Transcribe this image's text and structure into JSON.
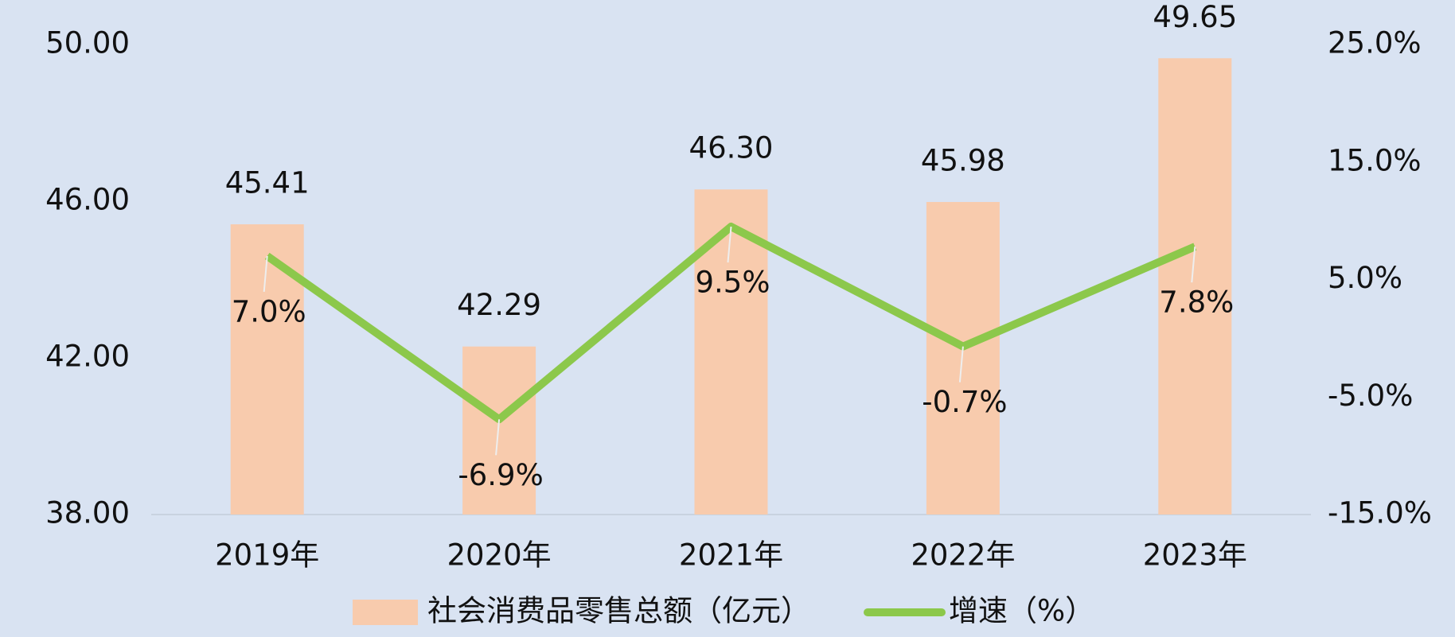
{
  "chart_data": {
    "type": "bar",
    "categories": [
      "2019年",
      "2020年",
      "2021年",
      "2022年",
      "2023年"
    ],
    "series": [
      {
        "name": "社会消费品零售总额（亿元）",
        "type": "bar",
        "color": "#f8cbad",
        "values": [
          45.41,
          42.29,
          46.3,
          45.98,
          49.65
        ],
        "value_labels": [
          "45.41",
          "42.29",
          "46.30",
          "45.98",
          "49.65"
        ]
      },
      {
        "name": "增速（%）",
        "type": "line",
        "axis": "y2",
        "color": "#8cc84b",
        "values": [
          7.0,
          -6.9,
          9.5,
          -0.7,
          7.8
        ],
        "value_labels": [
          "7.0%",
          "-6.9%",
          "9.5%",
          "-0.7%",
          "7.8%"
        ]
      }
    ],
    "ylim": [
      38,
      50
    ],
    "yticks": [
      {
        "value": 38,
        "label": "38.00"
      },
      {
        "value": 42,
        "label": "42.00"
      },
      {
        "value": 46,
        "label": "46.00"
      },
      {
        "value": 50,
        "label": "50.00"
      }
    ],
    "y2lim": [
      -15,
      25
    ],
    "y2ticks": [
      {
        "value": -15,
        "label": "-15.0%"
      },
      {
        "value": -5,
        "label": "-5.0%"
      },
      {
        "value": 5,
        "label": "5.0%"
      },
      {
        "value": 15,
        "label": "15.0%"
      },
      {
        "value": 25,
        "label": "25.0%"
      }
    ],
    "background": "#d9e3f2",
    "legend": "bottom"
  }
}
